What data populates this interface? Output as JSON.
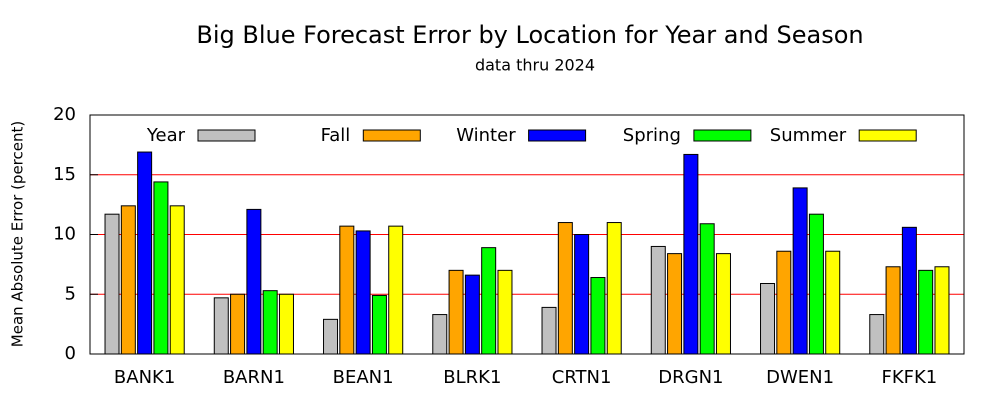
{
  "chart_data": {
    "type": "bar",
    "title": "Big Blue Forecast Error by Location for Year and Season",
    "subtitle": "data thru 2024",
    "y_label": "Mean Absolute Error (percent)",
    "categories": [
      "BANK1",
      "BARN1",
      "BEAN1",
      "BLRK1",
      "CRTN1",
      "DRGN1",
      "DWEN1",
      "FKFK1"
    ],
    "series": [
      {
        "name": "Year",
        "color": "#c0c0c0",
        "values": [
          11.7,
          4.7,
          2.9,
          3.3,
          3.9,
          9.0,
          5.9,
          3.3
        ]
      },
      {
        "name": "Fall",
        "color": "#ffa500",
        "values": [
          12.4,
          5.0,
          10.7,
          7.0,
          11.0,
          8.4,
          8.6,
          7.3
        ]
      },
      {
        "name": "Winter",
        "color": "#0000ff",
        "values": [
          16.9,
          12.1,
          10.3,
          6.6,
          10.0,
          16.7,
          13.9,
          10.6
        ]
      },
      {
        "name": "Spring",
        "color": "#00ff00",
        "values": [
          14.4,
          5.3,
          4.9,
          8.9,
          6.4,
          10.9,
          11.7,
          7.0
        ]
      },
      {
        "name": "Summer",
        "color": "#ffff00",
        "values": [
          12.4,
          5.0,
          10.7,
          7.0,
          11.0,
          8.4,
          8.6,
          7.3
        ]
      }
    ],
    "ylim": [
      0,
      20
    ],
    "yticks": [
      0,
      5,
      10,
      15,
      20
    ],
    "grid": true,
    "grid_color": "#ff0000",
    "legend": "top"
  }
}
